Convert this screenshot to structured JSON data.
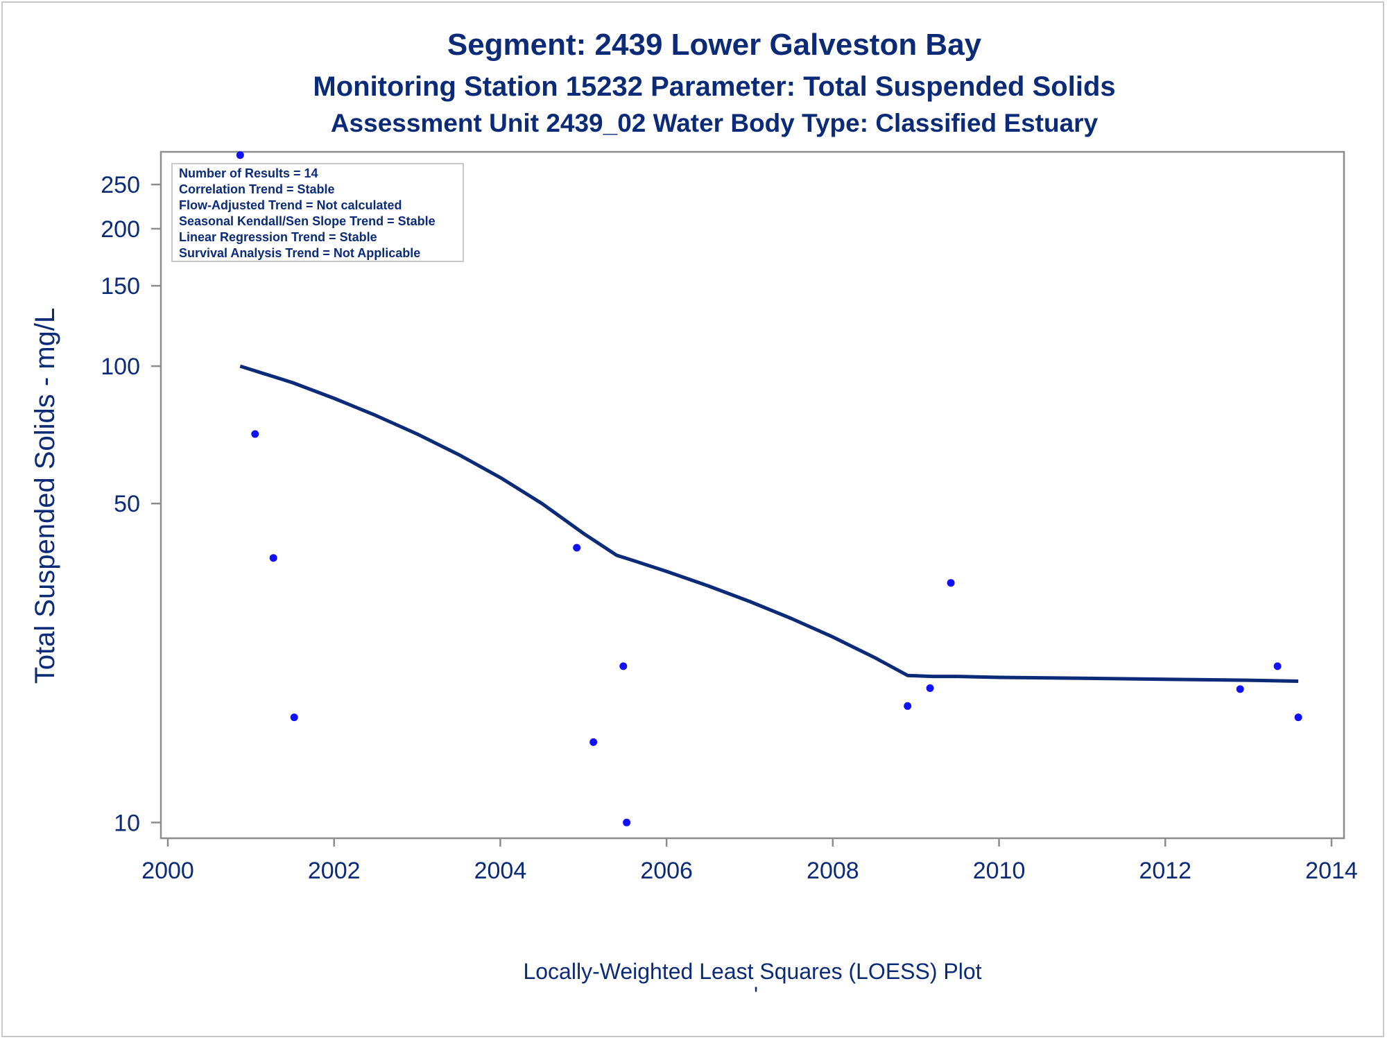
{
  "titles": {
    "line1": "Segment: 2439  Lower Galveston Bay",
    "line2": "Monitoring Station 15232 Parameter: Total Suspended Solids",
    "line3": "Assessment Unit 2439_02   Water Body Type: Classified Estuary"
  },
  "stats_box": {
    "lines": [
      "Number of Results = 14",
      "Correlation Trend = Stable",
      "Flow-Adjusted Trend = Not calculated",
      "Seasonal Kendall/Sen Slope Trend = Stable",
      "Linear Regression Trend = Stable",
      "Survival Analysis Trend = Not Applicable"
    ]
  },
  "footnote": "Locally-Weighted Least Squares (LOESS) Plot",
  "footnote_mark": "'",
  "colors": {
    "title": "#0b2a78",
    "points": "#1010ff",
    "loess_line": "#0b2a78",
    "axis": "#8c8c8c",
    "frame": "#c8c8c8"
  },
  "chart_data": {
    "type": "scatter",
    "title": "Segment: 2439  Lower Galveston Bay",
    "xlabel": "",
    "ylabel": "Total Suspended Solids - mg/L",
    "x_scale": "linear",
    "y_scale": "log",
    "xlim": [
      2000,
      2014
    ],
    "ylim": [
      9.6,
      300
    ],
    "x_ticks": [
      2000,
      2002,
      2004,
      2006,
      2008,
      2010,
      2012,
      2014
    ],
    "x_tick_labels": [
      "2000",
      "2002",
      "2004",
      "2006",
      "2008",
      "2010",
      "2012",
      "2014"
    ],
    "y_ticks": [
      10,
      50,
      100,
      150,
      200,
      250
    ],
    "y_tick_labels": [
      "10",
      "50",
      "100",
      "150",
      "200",
      "250"
    ],
    "grid": false,
    "series": [
      {
        "type": "scatter",
        "x": [
          2000.87,
          2001.05,
          2001.27,
          2001.52,
          2004.92,
          2005.12,
          2005.48,
          2005.52,
          2008.9,
          2009.17,
          2009.42,
          2012.9,
          2013.35,
          2013.6
        ],
        "y": [
          290,
          71,
          38,
          17,
          40,
          15,
          22,
          10,
          18,
          19.7,
          33.5,
          19.6,
          22,
          17
        ]
      },
      {
        "type": "line",
        "x": [
          2000.87,
          2001.5,
          2002,
          2002.5,
          2003,
          2003.5,
          2004,
          2004.5,
          2005,
          2005.4,
          2005.6,
          2006,
          2006.5,
          2007,
          2007.5,
          2008,
          2008.5,
          2008.9,
          2009.2,
          2009.5,
          2010,
          2011,
          2012,
          2013,
          2013.6
        ],
        "y": [
          100,
          92,
          85,
          78,
          71,
          64,
          57,
          50,
          43,
          38.5,
          37.5,
          35.5,
          33,
          30.5,
          28,
          25.5,
          23,
          21,
          20.9,
          20.9,
          20.8,
          20.7,
          20.6,
          20.5,
          20.4
        ]
      }
    ]
  }
}
